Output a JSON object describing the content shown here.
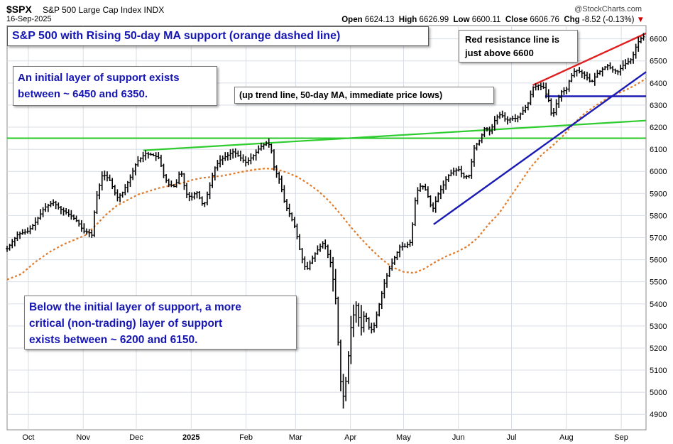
{
  "header": {
    "symbol": "$SPX",
    "description": "S&P 500 Large Cap Index INDX",
    "date": "16-Sep-2025",
    "brand": "@StockCharts.com",
    "open_label": "Open",
    "open": "6624.13",
    "high_label": "High",
    "high": "6626.99",
    "low_label": "Low",
    "low": "6600.11",
    "close_label": "Close",
    "close": "6606.76",
    "chg_label": "Chg",
    "chg": "-8.52 (-0.13%)",
    "chg_marker": "▼"
  },
  "annotations": {
    "title": "S&P 500 with Rising 50-day MA support (orange dashed line)",
    "support1_line1": "An initial layer of support exists",
    "support1_line2": "between ~ 6450 and 6350.",
    "support2_line1": "Below the initial layer of support, a more",
    "support2_line2": "critical (non-trading) layer of support",
    "support2_line3": "exists between ~ 6200 and 6150.",
    "resist_line1": "Red resistance line is",
    "resist_line2": "just above 6600",
    "trend_note": "(up trend line, 50-day MA, immediate price lows)"
  },
  "colors": {
    "price_bars": "#000000",
    "ma50": "#e07b2a",
    "support_green": "#2ecc2e",
    "trend_blue": "#1a1ab4",
    "resistance_red": "#e02020",
    "annotation_text": "#1616b4",
    "grid": "#d8dde6"
  },
  "chart_data": {
    "type": "line",
    "title": "S&P 500 with Rising 50-day MA support (orange dashed line)",
    "y_axis_side": "right",
    "ylim": [
      4830,
      6660
    ],
    "y_ticks": [
      4900,
      5000,
      5100,
      5200,
      5300,
      5400,
      5500,
      5600,
      5700,
      5800,
      5900,
      6000,
      6100,
      6200,
      6300,
      6400,
      6500,
      6600
    ],
    "x_tick_labels": [
      "Oct",
      "Nov",
      "Dec",
      "2025",
      "Feb",
      "Mar",
      "Apr",
      "May",
      "Jun",
      "Jul",
      "Aug",
      "Sep"
    ],
    "x_tick_days": [
      12,
      43,
      73,
      104,
      135,
      163,
      194,
      224,
      255,
      285,
      316,
      347
    ],
    "x_range_days": [
      0,
      361
    ],
    "grid": true,
    "series": [
      {
        "name": "$SPX",
        "kind": "ohlc",
        "points": [
          [
            0,
            5650
          ],
          [
            6,
            5715
          ],
          [
            12,
            5730
          ],
          [
            16,
            5770
          ],
          [
            21,
            5835
          ],
          [
            26,
            5860
          ],
          [
            30,
            5830
          ],
          [
            36,
            5800
          ],
          [
            40,
            5770
          ],
          [
            43,
            5730
          ],
          [
            46,
            5725
          ],
          [
            48,
            5710
          ],
          [
            50,
            5870
          ],
          [
            54,
            5990
          ],
          [
            58,
            5960
          ],
          [
            62,
            5880
          ],
          [
            65,
            5900
          ],
          [
            70,
            5980
          ],
          [
            73,
            6040
          ],
          [
            78,
            6080
          ],
          [
            82,
            6075
          ],
          [
            86,
            6060
          ],
          [
            88,
            5990
          ],
          [
            91,
            5940
          ],
          [
            95,
            5930
          ],
          [
            98,
            6010
          ],
          [
            101,
            5900
          ],
          [
            104,
            5880
          ],
          [
            107,
            5910
          ],
          [
            111,
            5840
          ],
          [
            114,
            5920
          ],
          [
            117,
            6010
          ],
          [
            120,
            6050
          ],
          [
            124,
            6070
          ],
          [
            128,
            6090
          ],
          [
            132,
            6060
          ],
          [
            135,
            6040
          ],
          [
            139,
            6070
          ],
          [
            143,
            6110
          ],
          [
            147,
            6130
          ],
          [
            149,
            6110
          ],
          [
            151,
            6010
          ],
          [
            154,
            5960
          ],
          [
            157,
            5850
          ],
          [
            160,
            5800
          ],
          [
            163,
            5740
          ],
          [
            166,
            5620
          ],
          [
            169,
            5550
          ],
          [
            172,
            5600
          ],
          [
            175,
            5640
          ],
          [
            179,
            5680
          ],
          [
            183,
            5580
          ],
          [
            186,
            5400
          ],
          [
            188,
            5070
          ],
          [
            190,
            4980
          ],
          [
            192,
            5080
          ],
          [
            194,
            5280
          ],
          [
            197,
            5400
          ],
          [
            200,
            5290
          ],
          [
            202,
            5360
          ],
          [
            205,
            5280
          ],
          [
            207,
            5290
          ],
          [
            210,
            5390
          ],
          [
            213,
            5490
          ],
          [
            216,
            5560
          ],
          [
            219,
            5610
          ],
          [
            222,
            5660
          ],
          [
            225,
            5660
          ],
          [
            228,
            5680
          ],
          [
            231,
            5900
          ],
          [
            234,
            5940
          ],
          [
            237,
            5910
          ],
          [
            239,
            5850
          ],
          [
            241,
            5830
          ],
          [
            243,
            5890
          ],
          [
            246,
            5930
          ],
          [
            249,
            5980
          ],
          [
            252,
            6000
          ],
          [
            255,
            6010
          ],
          [
            258,
            5975
          ],
          [
            261,
            5980
          ],
          [
            264,
            6110
          ],
          [
            267,
            6140
          ],
          [
            270,
            6200
          ],
          [
            273,
            6180
          ],
          [
            276,
            6240
          ],
          [
            279,
            6260
          ],
          [
            282,
            6230
          ],
          [
            285,
            6240
          ],
          [
            288,
            6240
          ],
          [
            291,
            6270
          ],
          [
            294,
            6300
          ],
          [
            297,
            6380
          ],
          [
            300,
            6390
          ],
          [
            303,
            6380
          ],
          [
            306,
            6320
          ],
          [
            308,
            6240
          ],
          [
            310,
            6300
          ],
          [
            313,
            6360
          ],
          [
            316,
            6370
          ],
          [
            318,
            6420
          ],
          [
            321,
            6460
          ],
          [
            324,
            6450
          ],
          [
            327,
            6430
          ],
          [
            330,
            6400
          ],
          [
            333,
            6440
          ],
          [
            336,
            6460
          ],
          [
            339,
            6480
          ],
          [
            342,
            6460
          ],
          [
            345,
            6450
          ],
          [
            348,
            6480
          ],
          [
            350,
            6490
          ],
          [
            353,
            6510
          ],
          [
            356,
            6580
          ],
          [
            359,
            6610
          ],
          [
            361,
            6607
          ]
        ]
      },
      {
        "name": "50-day MA",
        "kind": "dashed-line",
        "points": [
          [
            0,
            5510
          ],
          [
            8,
            5535
          ],
          [
            16,
            5590
          ],
          [
            24,
            5635
          ],
          [
            32,
            5670
          ],
          [
            38,
            5690
          ],
          [
            44,
            5710
          ],
          [
            50,
            5755
          ],
          [
            56,
            5805
          ],
          [
            62,
            5845
          ],
          [
            68,
            5870
          ],
          [
            74,
            5895
          ],
          [
            80,
            5910
          ],
          [
            86,
            5925
          ],
          [
            92,
            5935
          ],
          [
            98,
            5945
          ],
          [
            104,
            5960
          ],
          [
            110,
            5970
          ],
          [
            116,
            5975
          ],
          [
            122,
            5980
          ],
          [
            128,
            5990
          ],
          [
            134,
            6000
          ],
          [
            140,
            6008
          ],
          [
            146,
            6013
          ],
          [
            152,
            6010
          ],
          [
            158,
            5995
          ],
          [
            164,
            5975
          ],
          [
            170,
            5945
          ],
          [
            176,
            5910
          ],
          [
            182,
            5865
          ],
          [
            188,
            5810
          ],
          [
            194,
            5750
          ],
          [
            200,
            5695
          ],
          [
            206,
            5645
          ],
          [
            212,
            5600
          ],
          [
            218,
            5565
          ],
          [
            224,
            5545
          ],
          [
            230,
            5540
          ],
          [
            236,
            5560
          ],
          [
            242,
            5590
          ],
          [
            248,
            5615
          ],
          [
            254,
            5635
          ],
          [
            260,
            5660
          ],
          [
            266,
            5700
          ],
          [
            272,
            5760
          ],
          [
            278,
            5810
          ],
          [
            284,
            5880
          ],
          [
            290,
            5950
          ],
          [
            296,
            6020
          ],
          [
            302,
            6075
          ],
          [
            308,
            6115
          ],
          [
            314,
            6160
          ],
          [
            320,
            6215
          ],
          [
            326,
            6260
          ],
          [
            332,
            6295
          ],
          [
            338,
            6325
          ],
          [
            344,
            6350
          ],
          [
            350,
            6370
          ],
          [
            356,
            6395
          ],
          [
            361,
            6420
          ]
        ]
      },
      {
        "name": "Green support line (upper)",
        "kind": "line",
        "points": [
          [
            77,
            6095
          ],
          [
            361,
            6230
          ]
        ]
      },
      {
        "name": "Green support line (horizontal)",
        "kind": "line",
        "points": [
          [
            0,
            6150
          ],
          [
            361,
            6150
          ]
        ]
      },
      {
        "name": "Blue up trend line",
        "kind": "line",
        "points": [
          [
            241,
            5760
          ],
          [
            361,
            6450
          ]
        ]
      },
      {
        "name": "Blue support level",
        "kind": "line",
        "points": [
          [
            304,
            6340
          ],
          [
            361,
            6340
          ]
        ]
      },
      {
        "name": "Red resistance line",
        "kind": "line",
        "points": [
          [
            297,
            6390
          ],
          [
            361,
            6625
          ]
        ]
      }
    ]
  }
}
